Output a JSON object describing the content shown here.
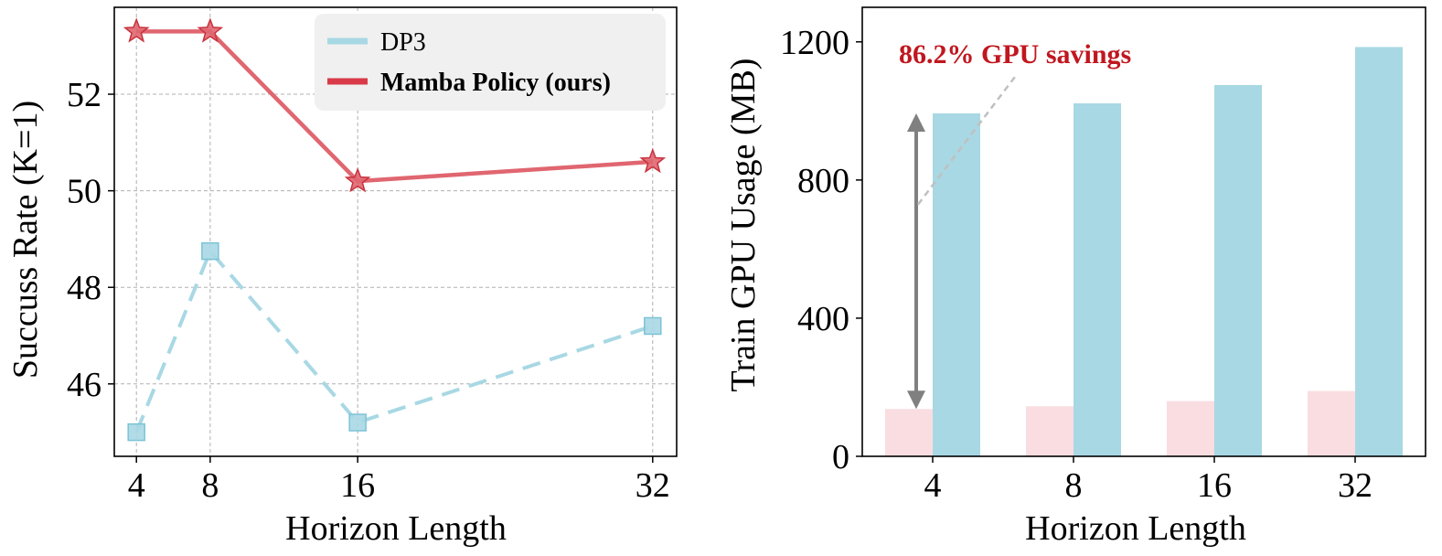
{
  "colors": {
    "dp3": "#a8d8e4",
    "mamba": "#e06670",
    "mamba_legend": "#d93a48",
    "mamba_bar": "#f9dde0",
    "annotation": "#c0171f",
    "arrow": "#808080",
    "grid": "#b0b0b0"
  },
  "chart_data": [
    {
      "type": "line",
      "xlabel": "Horizon Length",
      "ylabel": "Succuss Rate (K=1)",
      "x": [
        4,
        8,
        16,
        32
      ],
      "xticks": [
        "4",
        "8",
        "16",
        "32"
      ],
      "xlim": [
        2.8,
        33.3
      ],
      "ylim": [
        44.5,
        53.8
      ],
      "yticks": [
        "46",
        "48",
        "50",
        "52"
      ],
      "ytick_values": [
        46,
        48,
        50,
        52
      ],
      "grid": true,
      "legend_position": "top-right",
      "series": [
        {
          "name": "DP3",
          "values": [
            45.0,
            48.75,
            45.2,
            47.2
          ],
          "marker": "square",
          "linestyle": "dashed",
          "color_key": "dp3"
        },
        {
          "name": "Mamba Policy (ours)",
          "values": [
            53.3,
            53.3,
            50.2,
            50.6
          ],
          "marker": "star",
          "linestyle": "solid",
          "color_key": "mamba"
        }
      ]
    },
    {
      "type": "bar",
      "xlabel": "Horizon Length",
      "ylabel": "Train GPU Usage (MB)",
      "categories": [
        "4",
        "8",
        "16",
        "32"
      ],
      "ylim": [
        0,
        1300
      ],
      "yticks": [
        "0",
        "400",
        "800",
        "1200"
      ],
      "ytick_values": [
        0,
        400,
        800,
        1200
      ],
      "grid": false,
      "series": [
        {
          "name": "Mamba Policy (ours)",
          "values": [
            137,
            145,
            160,
            189
          ],
          "color_key": "mamba_bar"
        },
        {
          "name": "DP3",
          "values": [
            993,
            1022,
            1075,
            1185
          ],
          "color_key": "dp3"
        }
      ],
      "annotation": {
        "text": "86.2% GPU savings",
        "arrow_from": 137,
        "arrow_to": 993,
        "category": "4"
      }
    }
  ]
}
